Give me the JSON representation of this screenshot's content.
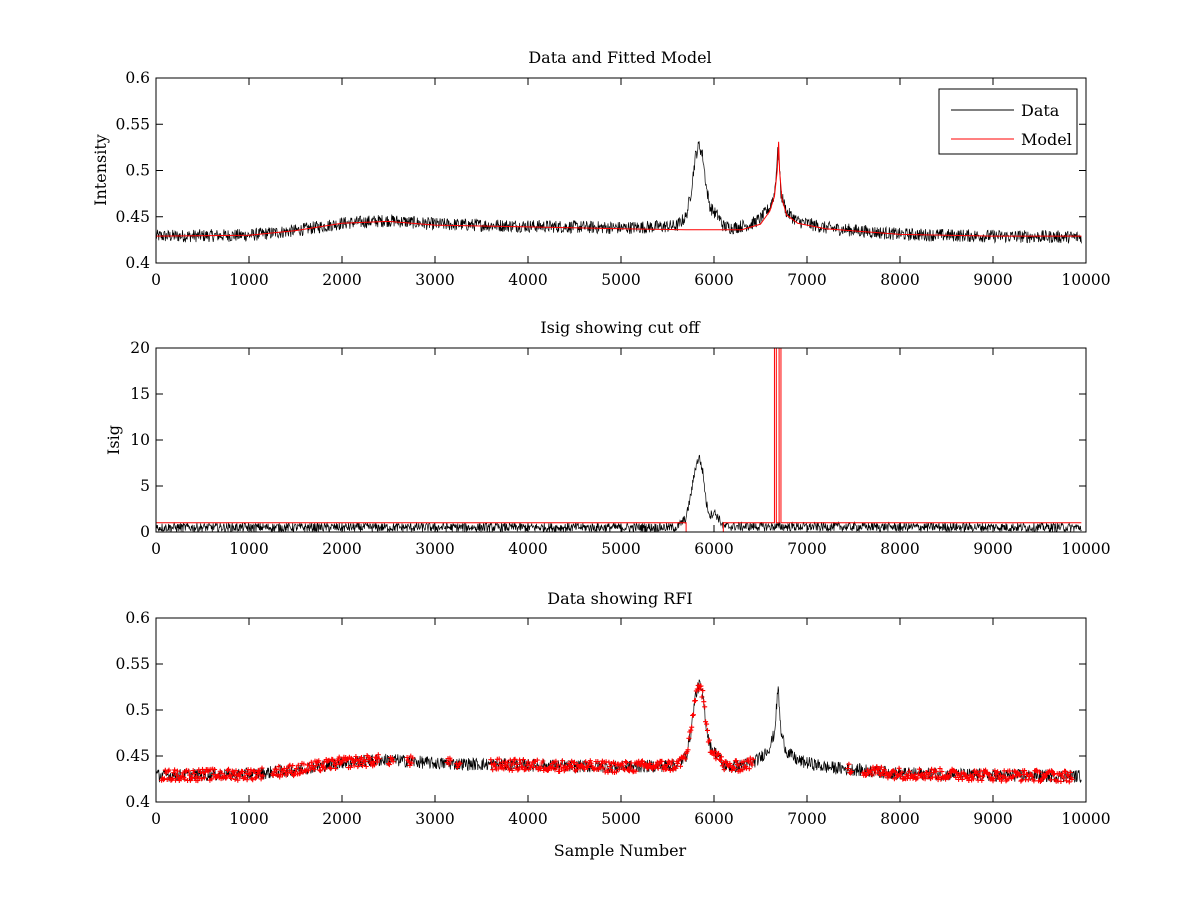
{
  "colors": {
    "data": "#000000",
    "model": "#ff0000",
    "rfi": "#ff0000",
    "axes": "#000000",
    "background": "#ffffff"
  },
  "chart_data": [
    {
      "id": "top",
      "type": "line",
      "title": "Data and Fitted Model",
      "xlabel": "",
      "ylabel": "Intensity",
      "xlim": [
        0,
        10000
      ],
      "ylim": [
        0.4,
        0.6
      ],
      "xticks": [
        0,
        1000,
        2000,
        3000,
        4000,
        5000,
        6000,
        7000,
        8000,
        9000,
        10000
      ],
      "yticks": [
        0.4,
        0.45,
        0.5,
        0.55,
        0.6
      ],
      "ytick_labels": [
        "0.4",
        "0.45",
        "0.5",
        "0.55",
        "0.6"
      ],
      "legend": {
        "position": "top-right",
        "entries": [
          "Data",
          "Model"
        ]
      },
      "series": [
        {
          "name": "Data",
          "color": "#000000",
          "noise": 0.007,
          "baseline": [
            [
              0,
              0.429
            ],
            [
              1000,
              0.43
            ],
            [
              1500,
              0.435
            ],
            [
              2000,
              0.443
            ],
            [
              2500,
              0.446
            ],
            [
              3000,
              0.442
            ],
            [
              4000,
              0.44
            ],
            [
              5000,
              0.438
            ],
            [
              5600,
              0.44
            ],
            [
              5700,
              0.45
            ],
            [
              5750,
              0.475
            ],
            [
              5800,
              0.515
            ],
            [
              5840,
              0.528
            ],
            [
              5880,
              0.515
            ],
            [
              5920,
              0.48
            ],
            [
              5960,
              0.46
            ],
            [
              6000,
              0.455
            ],
            [
              6050,
              0.45
            ],
            [
              6100,
              0.44
            ],
            [
              6200,
              0.438
            ],
            [
              6400,
              0.442
            ],
            [
              6500,
              0.448
            ],
            [
              6600,
              0.46
            ],
            [
              6650,
              0.475
            ],
            [
              6690,
              0.525
            ],
            [
              6720,
              0.475
            ],
            [
              6780,
              0.455
            ],
            [
              6900,
              0.445
            ],
            [
              7200,
              0.438
            ],
            [
              8000,
              0.431
            ],
            [
              9000,
              0.429
            ],
            [
              9950,
              0.428
            ]
          ]
        },
        {
          "name": "Model",
          "color": "#ff0000",
          "points": [
            [
              0,
              0.429
            ],
            [
              1000,
              0.43
            ],
            [
              1500,
              0.435
            ],
            [
              2000,
              0.443
            ],
            [
              2500,
              0.445
            ],
            [
              3000,
              0.441
            ],
            [
              4000,
              0.439
            ],
            [
              5000,
              0.437
            ],
            [
              5700,
              0.436
            ],
            [
              6000,
              0.436
            ],
            [
              6300,
              0.436
            ],
            [
              6500,
              0.442
            ],
            [
              6600,
              0.456
            ],
            [
              6650,
              0.472
            ],
            [
              6680,
              0.5
            ],
            [
              6695,
              0.531
            ],
            [
              6705,
              0.5
            ],
            [
              6730,
              0.47
            ],
            [
              6780,
              0.452
            ],
            [
              6900,
              0.443
            ],
            [
              7200,
              0.437
            ],
            [
              8000,
              0.431
            ],
            [
              9000,
              0.429
            ],
            [
              9950,
              0.429
            ]
          ]
        }
      ]
    },
    {
      "id": "mid",
      "type": "line",
      "title": "Isig showing cut off",
      "xlabel": "",
      "ylabel": "Isig",
      "xlim": [
        0,
        10000
      ],
      "ylim": [
        0,
        20
      ],
      "xticks": [
        0,
        1000,
        2000,
        3000,
        4000,
        5000,
        6000,
        7000,
        8000,
        9000,
        10000
      ],
      "yticks": [
        0,
        5,
        10,
        15,
        20
      ],
      "ytick_labels": [
        "0",
        "5",
        "10",
        "15",
        "20"
      ],
      "series": [
        {
          "name": "Isig",
          "color": "#000000",
          "noise": 0.5,
          "baseline": [
            [
              0,
              0.5
            ],
            [
              5600,
              0.5
            ],
            [
              5700,
              1.5
            ],
            [
              5750,
              4.0
            ],
            [
              5800,
              7.0
            ],
            [
              5840,
              8.2
            ],
            [
              5880,
              6.5
            ],
            [
              5920,
              3.0
            ],
            [
              5960,
              1.8
            ],
            [
              6000,
              2.2
            ],
            [
              6050,
              1.5
            ],
            [
              6100,
              0.6
            ],
            [
              9950,
              0.5
            ]
          ]
        },
        {
          "name": "Cut off",
          "color": "#ff0000",
          "points": [
            [
              0,
              1.0
            ],
            [
              5700,
              1.0
            ],
            [
              5700,
              0.0
            ],
            [
              6100,
              0.0
            ],
            [
              6100,
              1.0
            ],
            [
              6650,
              1.0
            ],
            [
              6650,
              20
            ],
            [
              6670,
              20
            ],
            [
              6670,
              1.0
            ],
            [
              6700,
              1.0
            ],
            [
              6700,
              20
            ],
            [
              6720,
              20
            ],
            [
              6720,
              1.0
            ],
            [
              9950,
              1.0
            ]
          ]
        }
      ]
    },
    {
      "id": "bot",
      "type": "line",
      "title": "Data showing RFI",
      "xlabel": "Sample Number",
      "ylabel": "",
      "xlim": [
        0,
        10000
      ],
      "ylim": [
        0.4,
        0.6
      ],
      "xticks": [
        0,
        1000,
        2000,
        3000,
        4000,
        5000,
        6000,
        7000,
        8000,
        9000,
        10000
      ],
      "yticks": [
        0.4,
        0.45,
        0.5,
        0.55,
        0.6
      ],
      "ytick_labels": [
        "0.4",
        "0.45",
        "0.5",
        "0.55",
        "0.6"
      ],
      "series": [
        {
          "name": "Data",
          "color": "#000000",
          "noise": 0.007,
          "baseline": [
            [
              0,
              0.429
            ],
            [
              1000,
              0.43
            ],
            [
              1500,
              0.435
            ],
            [
              2000,
              0.443
            ],
            [
              2500,
              0.446
            ],
            [
              3000,
              0.442
            ],
            [
              4000,
              0.44
            ],
            [
              5000,
              0.438
            ],
            [
              5600,
              0.44
            ],
            [
              5700,
              0.45
            ],
            [
              5750,
              0.475
            ],
            [
              5800,
              0.515
            ],
            [
              5840,
              0.528
            ],
            [
              5880,
              0.515
            ],
            [
              5920,
              0.48
            ],
            [
              5960,
              0.46
            ],
            [
              6000,
              0.455
            ],
            [
              6050,
              0.45
            ],
            [
              6100,
              0.44
            ],
            [
              6200,
              0.438
            ],
            [
              6400,
              0.442
            ],
            [
              6500,
              0.448
            ],
            [
              6600,
              0.46
            ],
            [
              6650,
              0.475
            ],
            [
              6690,
              0.525
            ],
            [
              6720,
              0.475
            ],
            [
              6780,
              0.455
            ],
            [
              6900,
              0.445
            ],
            [
              7200,
              0.438
            ],
            [
              8000,
              0.431
            ],
            [
              9000,
              0.429
            ],
            [
              9950,
              0.428
            ]
          ]
        },
        {
          "name": "RFI",
          "color": "#ff0000",
          "marker": "+",
          "ranges": [
            [
              60,
              1150
            ],
            [
              1250,
              2400
            ],
            [
              2500,
              2550
            ],
            [
              2700,
              2760
            ],
            [
              3130,
              3170
            ],
            [
              3230,
              3270
            ],
            [
              3600,
              6420
            ],
            [
              7440,
              7480
            ],
            [
              7600,
              9850
            ]
          ]
        }
      ]
    }
  ]
}
